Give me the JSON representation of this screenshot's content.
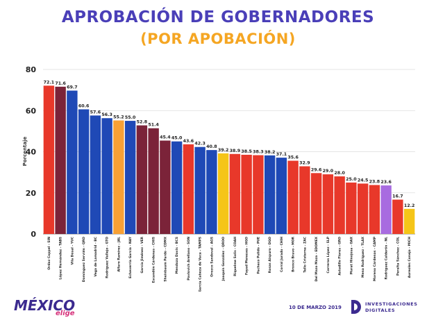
{
  "chart_data": {
    "type": "bar",
    "title": "APROBACIÓN DE GOBERNADORES",
    "subtitle": "(POR APOBACIÓN)",
    "xlabel": "",
    "ylabel": "Porcentaje",
    "ylim": [
      0,
      80
    ],
    "yticks": [
      0,
      20,
      40,
      60,
      80
    ],
    "grid": true,
    "categories": [
      "Ordaz Coppel - SIN",
      "López Hernández - TABS",
      "Vila Dosal - YUC",
      "Domínguez Servién - QRO",
      "Vega de Lamadrid - BC",
      "Rodríguez Vallejo - GTO",
      "Alfaro Ramírez - JAL",
      "Echeverría García - NAY",
      "García Jiménez - VER",
      "Escandón Cárdenas - CHIS",
      "Sheinbaum Pardo - CDMX",
      "Mendoza Davis - BCS",
      "Pavlovich Arellano - SON",
      "García Cabeza de Vaca - TAMPS",
      "Orozco Sandoval - AGS",
      "Joaquín González - QROO",
      "Riquelme Solis - COAH",
      "Fayad Meneses - HGO",
      "Pacheco Pulido - PUE",
      "Rosas Aispuro - DGO",
      "Corral Jurado - CHIH",
      "Bronco Bravo - MOR",
      "Tello Cristerna - ZAC",
      "Del Mazo Maza - EDOMEX",
      "Carreras López - SLP",
      "Astudillo Flores - GRO",
      "Murat Hinojosa - OAX",
      "Mena Rodríguez - TLAX",
      "Moreno Cárdenas - CAMP",
      "Rodríguez Calderón - NL",
      "Peralta Sánchez - COL",
      "Aureoles Conejo - MICH"
    ],
    "values": [
      72.1,
      71.6,
      69.7,
      60.6,
      57.6,
      56.3,
      55.2,
      55.0,
      52.8,
      51.4,
      45.4,
      45.0,
      43.6,
      42.3,
      40.8,
      39.2,
      38.9,
      38.5,
      38.3,
      38.2,
      37.1,
      35.6,
      32.9,
      29.6,
      29.0,
      28.0,
      25.0,
      24.5,
      23.8,
      23.6,
      16.7,
      12.2
    ],
    "value_labels": [
      "72.1",
      "71.6",
      "69.7",
      "60.6",
      "57.6",
      "56.3",
      "55.2",
      "55.0",
      "52.8",
      "51.4",
      "45.4",
      "45.0",
      "43.6",
      "42.3",
      "40.8",
      "39.2",
      "38.9",
      "38.5",
      "38.3",
      "38.2",
      "37.1",
      "35.6",
      "32.9",
      "29.6",
      "29.0",
      "28.0",
      "25.0",
      "24.5",
      "23.8",
      "23.6",
      "16.7",
      "12.2"
    ],
    "colors": [
      "#e8382a",
      "#7b2339",
      "#1f49b6",
      "#1f49b6",
      "#1f49b6",
      "#1f49b6",
      "#f7a035",
      "#1f49b6",
      "#7b2339",
      "#7b2339",
      "#7b2339",
      "#1f49b6",
      "#e8382a",
      "#1f49b6",
      "#1f49b6",
      "#f5c518",
      "#e8382a",
      "#e8382a",
      "#e8382a",
      "#1f49b6",
      "#1f49b6",
      "#e8382a",
      "#e8382a",
      "#e8382a",
      "#e8382a",
      "#e8382a",
      "#e8382a",
      "#e8382a",
      "#e8382a",
      "#a86be0",
      "#e8382a",
      "#f5c518"
    ]
  },
  "footer": {
    "logo_main": "MÉXICO",
    "logo_sub": "elige",
    "date": "10 DE MARZO 2019",
    "brand_line1": "INVESTIGACIONES",
    "brand_line2": "DIGITALES"
  },
  "colors": {
    "title": "#4a3fb8",
    "subtitle": "#f5a623",
    "grid": "#dddddd"
  }
}
